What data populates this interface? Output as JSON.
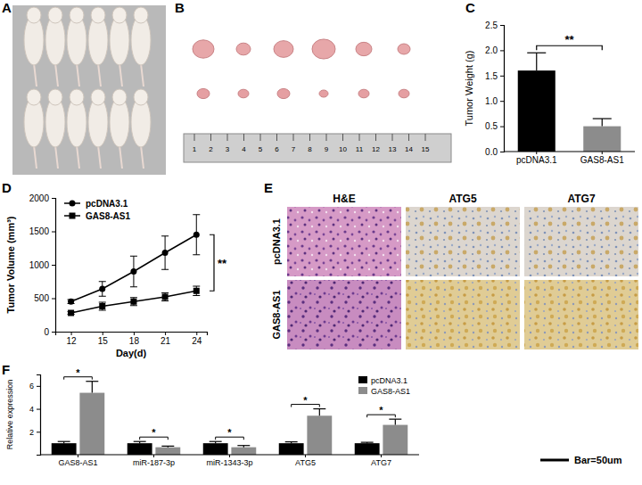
{
  "figure": {
    "panel_labels": [
      "A",
      "B",
      "C",
      "D",
      "E",
      "F"
    ],
    "ruler_labels": [
      1,
      2,
      3,
      4,
      5,
      6,
      7,
      8,
      9,
      10,
      11,
      12,
      13,
      14,
      15
    ],
    "ihc": {
      "columns": [
        "H&E",
        "ATG5",
        "ATG7"
      ],
      "rows": [
        "pcDNA3.1",
        "GAS8-AS1"
      ],
      "scale_bar": "Bar=50um"
    }
  },
  "chart_data": [
    {
      "type": "bar",
      "categories": [
        "pcDNA3.1",
        "GAS8-AS1"
      ],
      "values": [
        1.6,
        0.5
      ],
      "errors": [
        0.35,
        0.15
      ],
      "colors": [
        "#000000",
        "#8c8c8c"
      ],
      "y_label": "Tumor Weight (g)",
      "ylim": [
        0,
        2.5
      ],
      "yticks": [
        {
          "value": 0,
          "label": "0.0"
        },
        0.5,
        {
          "value": 1,
          "label": "1.0"
        },
        1.5,
        {
          "value": 2,
          "label": "2.0"
        },
        2.5
      ],
      "annotation": "**"
    },
    {
      "type": "line",
      "x": [
        12,
        15,
        18,
        21,
        24
      ],
      "series": [
        {
          "name": "pcDNA3.1",
          "color": "#000000",
          "marker": "circle",
          "values": [
            450,
            640,
            900,
            1180,
            1450
          ],
          "errors": [
            30,
            110,
            230,
            250,
            300
          ]
        },
        {
          "name": "GAS8-AS1",
          "color": "#000000",
          "marker": "square",
          "values": [
            280,
            380,
            450,
            520,
            610
          ],
          "errors": [
            20,
            60,
            60,
            60,
            70
          ]
        }
      ],
      "x_label": "Day(d)",
      "y_label": "Tumor Volume (mm³)",
      "xlim": [
        10.5,
        25
      ],
      "xticks": [
        12,
        15,
        18,
        21,
        24
      ],
      "ylim": [
        0,
        2000
      ],
      "yticks": [
        0,
        500,
        1000,
        1500,
        2000
      ],
      "legend": "top-left",
      "annotation": "**"
    },
    {
      "type": "bar",
      "categories": [
        "GAS8-AS1",
        "miR-187-3p",
        "miR-1343-3p",
        "ATG5",
        "ATG7"
      ],
      "series": [
        {
          "name": "pcDNA3.1",
          "color": "#000000",
          "values": [
            1,
            1,
            1,
            1,
            1
          ],
          "errors": [
            0.15,
            0.15,
            0.15,
            0.12,
            0.08
          ]
        },
        {
          "name": "GAS8-AS1",
          "color": "#8c8c8c",
          "values": [
            5.4,
            0.65,
            0.65,
            3.4,
            2.6
          ],
          "errors": [
            1.0,
            0.1,
            0.15,
            0.6,
            0.5
          ]
        }
      ],
      "y_label": "Relative expression",
      "ylim": [
        0,
        7
      ],
      "yticks": [
        2,
        4,
        6
      ],
      "legend": "top-right",
      "annotations": [
        "*",
        "*",
        "*",
        "*",
        "*"
      ]
    }
  ]
}
